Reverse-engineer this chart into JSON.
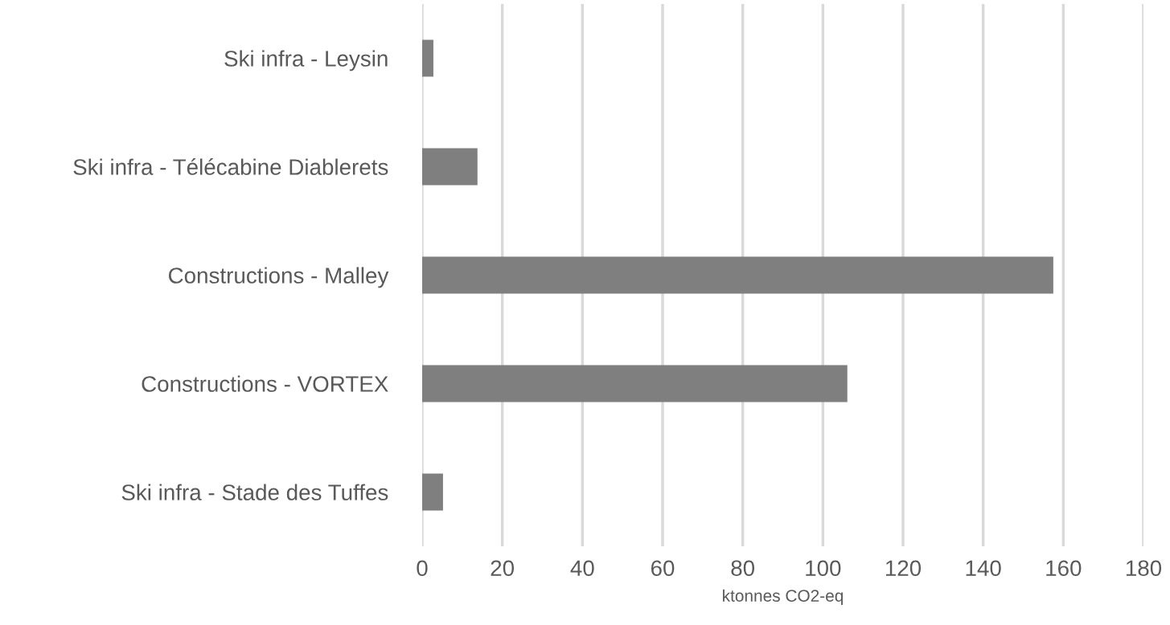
{
  "chart_data": {
    "type": "bar",
    "orientation": "horizontal",
    "xlabel": "ktonnes CO2-eq",
    "categories": [
      "Ski infra - Leysin",
      "Ski infra - Télécabine Diablerets",
      "Constructions - Malley",
      "Constructions - VORTEX",
      "Ski infra - Stade des Tuffes"
    ],
    "values": [
      2.8,
      13.8,
      157.5,
      106.1,
      5.2
    ],
    "color": "#7f7f7f",
    "xlim": [
      0,
      180
    ],
    "xticks": [
      0,
      20,
      40,
      60,
      80,
      100,
      120,
      140,
      160,
      180
    ],
    "grid": "x"
  }
}
